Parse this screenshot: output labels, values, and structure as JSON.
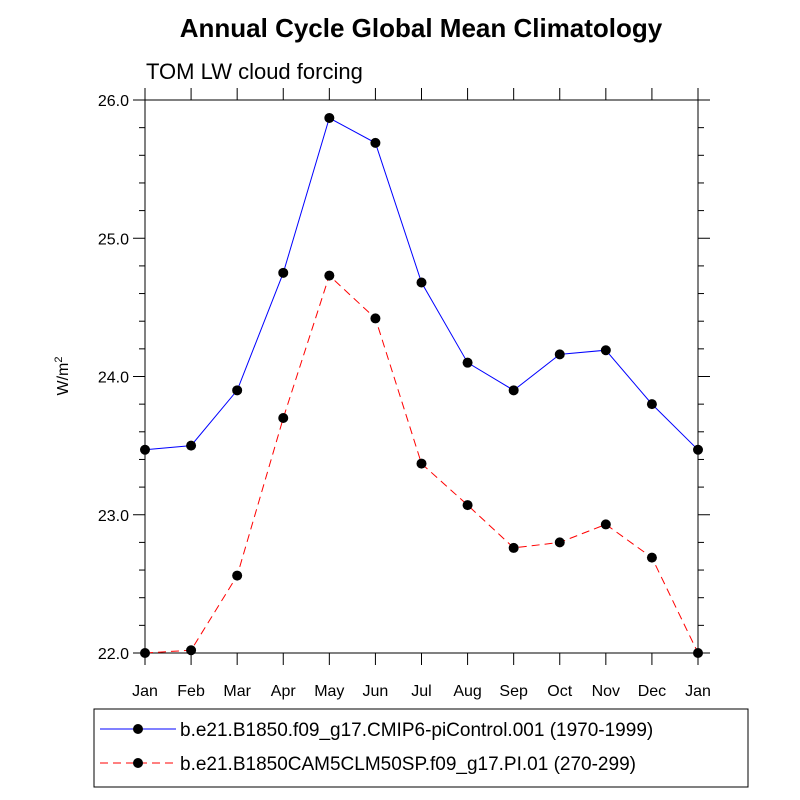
{
  "chart_data": {
    "type": "line",
    "title": "Annual Cycle Global Mean Climatology",
    "subtitle": "TOM LW cloud forcing",
    "ylabel": "W/m",
    "ylabel_superscript": "2",
    "xlabel": "",
    "categories": [
      "Jan",
      "Feb",
      "Mar",
      "Apr",
      "May",
      "Jun",
      "Jul",
      "Aug",
      "Sep",
      "Oct",
      "Nov",
      "Dec",
      "Jan"
    ],
    "ylim": [
      22.0,
      26.0
    ],
    "yticks": [
      22.0,
      23.0,
      24.0,
      25.0,
      26.0
    ],
    "ytick_labels": [
      "22.0",
      "23.0",
      "24.0",
      "25.0",
      "26.0"
    ],
    "grid": false,
    "legend_position": "bottom",
    "series": [
      {
        "name": "b.e21.B1850.f09_g17.CMIP6-piControl.001 (1970-1999)",
        "color": "#0000ff",
        "dash": "solid",
        "values": [
          23.47,
          23.5,
          23.9,
          24.75,
          25.87,
          25.69,
          24.68,
          24.1,
          23.9,
          24.16,
          24.19,
          23.8,
          23.47
        ]
      },
      {
        "name": "b.e21.B1850CAM5CLM50SP.f09_g17.PI.01 (270-299)",
        "color": "#ff0000",
        "dash": "dashed",
        "values": [
          22.0,
          22.02,
          22.56,
          23.7,
          24.73,
          24.42,
          23.37,
          23.07,
          22.76,
          22.8,
          22.93,
          22.69,
          22.0
        ]
      }
    ]
  }
}
